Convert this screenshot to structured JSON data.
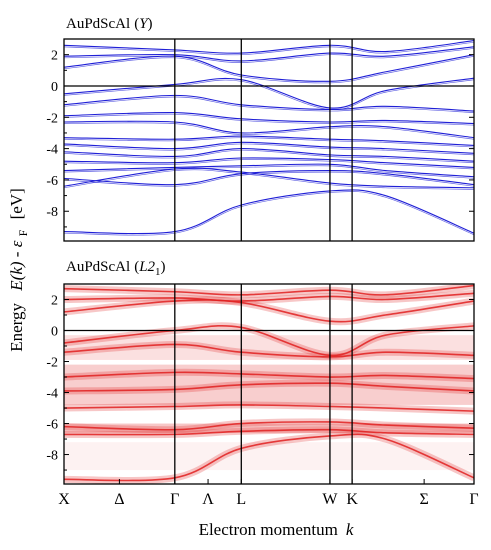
{
  "chart_data": [
    {
      "type": "line",
      "panel_title": "AuPdScAl (Y)",
      "title_main": "AuPdScAl",
      "title_var": "Y",
      "ylim": [
        -9.9,
        3.0
      ],
      "yticks": [
        2,
        0,
        -2,
        -4,
        -6,
        -8
      ],
      "x_points": [
        0,
        2,
        3.2,
        4.8,
        5.8,
        7.4
      ],
      "series_color": "#1f1fd6",
      "fermi_level": 0,
      "bands": [
        {
          "name": "b1",
          "y": [
            -9.3,
            -9.3,
            -7.6,
            -6.7,
            -7.0,
            -9.4
          ]
        },
        {
          "name": "b2",
          "y": [
            -6.4,
            -5.3,
            -5.5,
            -6.2,
            -6.4,
            -6.5
          ]
        },
        {
          "name": "b3",
          "y": [
            -5.9,
            -6.3,
            -5.6,
            -5.4,
            -5.6,
            -6.3
          ]
        },
        {
          "name": "b4",
          "y": [
            -5.4,
            -5.2,
            -5.1,
            -5.0,
            -5.4,
            -5.8
          ]
        },
        {
          "name": "b5",
          "y": [
            -4.8,
            -4.9,
            -4.6,
            -4.7,
            -4.9,
            -5.2
          ]
        },
        {
          "name": "b6",
          "y": [
            -4.2,
            -4.5,
            -4.0,
            -4.4,
            -4.5,
            -4.8
          ]
        },
        {
          "name": "b7",
          "y": [
            -3.7,
            -4.0,
            -3.6,
            -3.9,
            -4.0,
            -4.3
          ]
        },
        {
          "name": "b8",
          "y": [
            -3.3,
            -3.4,
            -3.2,
            -3.4,
            -3.5,
            -3.8
          ]
        },
        {
          "name": "b9",
          "y": [
            -2.3,
            -2.3,
            -3.0,
            -2.6,
            -2.6,
            -3.3
          ]
        },
        {
          "name": "b10",
          "y": [
            -1.9,
            -1.7,
            -2.1,
            -2.3,
            -2.2,
            -2.4
          ]
        },
        {
          "name": "b11",
          "y": [
            -1.2,
            -0.6,
            -1.2,
            -1.5,
            -1.3,
            -1.6
          ]
        },
        {
          "name": "b12",
          "y": [
            -0.5,
            0.1,
            0.4,
            -1.4,
            -0.3,
            0.5
          ]
        },
        {
          "name": "b13",
          "y": [
            1.2,
            1.9,
            0.7,
            0.3,
            0.9,
            2.0
          ]
        },
        {
          "name": "b14",
          "y": [
            1.9,
            2.0,
            1.6,
            2.1,
            1.9,
            2.5
          ]
        },
        {
          "name": "b15",
          "y": [
            2.6,
            2.3,
            2.1,
            2.6,
            2.2,
            2.9
          ]
        }
      ]
    },
    {
      "type": "line",
      "panel_title": "AuPdScAl (L21)",
      "title_main": "AuPdScAl",
      "title_var": "L2",
      "title_sub": "1",
      "ylim": [
        -9.9,
        3.0
      ],
      "yticks": [
        2,
        0,
        -2,
        -4,
        -6,
        -8
      ],
      "x_points": [
        0,
        2,
        3.2,
        4.8,
        5.8,
        7.4
      ],
      "series_color": "#e02020",
      "fermi_level": 0,
      "bands": [
        {
          "name": "b1",
          "y": [
            -9.6,
            -9.5,
            -7.6,
            -6.8,
            -7.0,
            -9.5
          ]
        },
        {
          "name": "b2",
          "y": [
            -6.7,
            -6.7,
            -6.5,
            -6.4,
            -6.6,
            -6.7
          ]
        },
        {
          "name": "b3",
          "y": [
            -6.2,
            -6.4,
            -6.0,
            -5.9,
            -6.1,
            -6.3
          ]
        },
        {
          "name": "b4",
          "y": [
            -5.0,
            -4.9,
            -4.8,
            -4.9,
            -5.0,
            -5.2
          ]
        },
        {
          "name": "b5",
          "y": [
            -3.9,
            -3.8,
            -3.5,
            -3.4,
            -3.6,
            -3.9
          ]
        },
        {
          "name": "b6",
          "y": [
            -3.0,
            -2.7,
            -2.8,
            -3.0,
            -2.9,
            -3.1
          ]
        },
        {
          "name": "b7",
          "y": [
            -1.4,
            -0.9,
            -1.4,
            -1.7,
            -1.4,
            -1.6
          ]
        },
        {
          "name": "b8",
          "y": [
            -0.8,
            0.0,
            0.2,
            -1.6,
            -0.3,
            0.3
          ]
        },
        {
          "name": "b9",
          "y": [
            1.2,
            1.9,
            1.8,
            0.6,
            1.0,
            1.9
          ]
        },
        {
          "name": "b10",
          "y": [
            2.0,
            2.1,
            1.9,
            2.2,
            2.0,
            2.4
          ]
        },
        {
          "name": "b11",
          "y": [
            2.7,
            2.5,
            2.3,
            2.6,
            2.3,
            2.9
          ]
        }
      ],
      "smear_regions": [
        {
          "from": -4.8,
          "to": -2.2,
          "opacity": 0.22
        },
        {
          "from": -6.6,
          "to": -6.0,
          "opacity": 0.25
        },
        {
          "from": -1.9,
          "to": -0.3,
          "opacity": 0.14
        },
        {
          "from": -9.0,
          "to": -7.2,
          "opacity": 0.06
        }
      ]
    }
  ],
  "axes": {
    "ylabel_main": "E(k) - ε",
    "ylabel_sub": "F",
    "ylabel_unit": "[eV]",
    "ylabel_energy": "Energy",
    "xlabel": "Electron momentum",
    "xlabel_var": "k",
    "x_tick_labels": [
      "X",
      "Δ",
      "Γ",
      "Λ",
      "L",
      "W",
      "K",
      "Σ",
      "Γ"
    ],
    "x_tick_positions": [
      0,
      1,
      2,
      2.6,
      3.2,
      4.8,
      5.2,
      6.5,
      7.4
    ],
    "vertical_lines_at": [
      2,
      3.2,
      4.8,
      5.2
    ]
  }
}
